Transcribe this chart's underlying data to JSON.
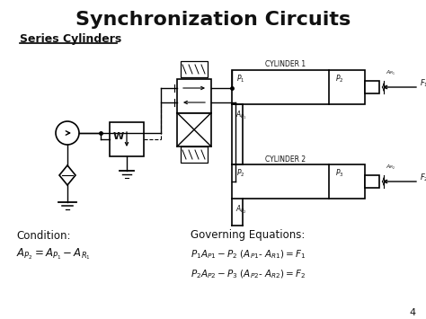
{
  "title": "Synchronization Circuits",
  "subtitle": "Series Cylinders",
  "bg_color": "#ffffff",
  "text_color": "#111111",
  "condition_label": "Condition:",
  "governing_label": "Governing Equations:",
  "page_num": "4",
  "figw": 4.74,
  "figh": 3.55,
  "dpi": 100
}
